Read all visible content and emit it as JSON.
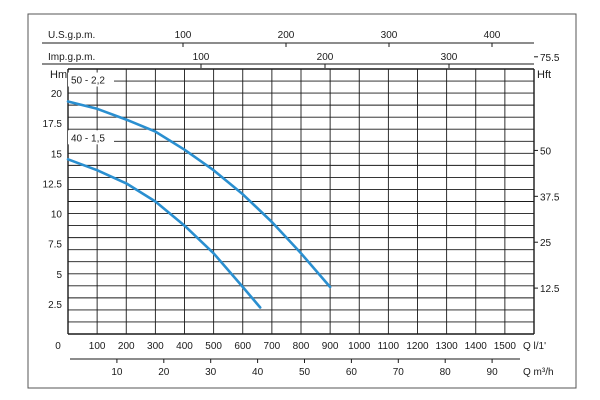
{
  "colors": {
    "curve": "#2a8fd0",
    "grid": "#1a1a1a",
    "text": "#1a1a1a",
    "frame": "#555555"
  },
  "chart_data": {
    "type": "line",
    "top_axis_usgpm": {
      "label": "U.S.g.p.m.",
      "ticks": [
        "100",
        "200",
        "300",
        "400"
      ],
      "values": [
        100,
        200,
        300,
        400
      ]
    },
    "top_axis_impgpm": {
      "label": "Imp.g.p.m.",
      "ticks": [
        "100",
        "200",
        "300"
      ],
      "values": [
        100,
        200,
        300
      ]
    },
    "left_axis": {
      "label": "Hm",
      "ticks": [
        "2.5",
        "5",
        "7.5",
        "10",
        "12.5",
        "15",
        "17.5",
        "20"
      ],
      "values": [
        2.5,
        5,
        7.5,
        10,
        12.5,
        15,
        17.5,
        20
      ],
      "ylim": [
        0,
        22
      ]
    },
    "right_axis": {
      "label": "Hft",
      "ticks": [
        "12.5",
        "25",
        "37.5",
        "50",
        "75.5"
      ],
      "values": [
        12.5,
        25,
        37.5,
        50,
        75.5
      ]
    },
    "bottom_axis_lpm": {
      "label": "Q l/1'",
      "ticks": [
        "0",
        "100",
        "200",
        "300",
        "400",
        "500",
        "600",
        "700",
        "800",
        "900",
        "1000",
        "1100",
        "1200",
        "1300",
        "1400",
        "1500"
      ],
      "values": [
        0,
        100,
        200,
        300,
        400,
        500,
        600,
        700,
        800,
        900,
        1000,
        1100,
        1200,
        1300,
        1400,
        1500
      ],
      "xlim": [
        0,
        1600
      ]
    },
    "bottom_axis_m3h": {
      "label": "Q m³/h",
      "ticks": [
        "10",
        "20",
        "30",
        "40",
        "50",
        "60",
        "70",
        "80",
        "90"
      ],
      "values": [
        10,
        20,
        30,
        40,
        50,
        60,
        70,
        80,
        90
      ]
    },
    "series": [
      {
        "name": "50 - 2,2",
        "x": [
          0,
          100,
          200,
          300,
          400,
          500,
          600,
          700,
          800,
          900
        ],
        "y": [
          19.3,
          18.7,
          17.8,
          16.8,
          15.3,
          13.6,
          11.6,
          9.3,
          6.7,
          3.9
        ]
      },
      {
        "name": "40 - 1,5",
        "x": [
          0,
          100,
          200,
          300,
          400,
          500,
          600,
          660
        ],
        "y": [
          14.5,
          13.6,
          12.5,
          11.0,
          9.0,
          6.7,
          3.9,
          2.2
        ]
      }
    ],
    "grid": true
  }
}
